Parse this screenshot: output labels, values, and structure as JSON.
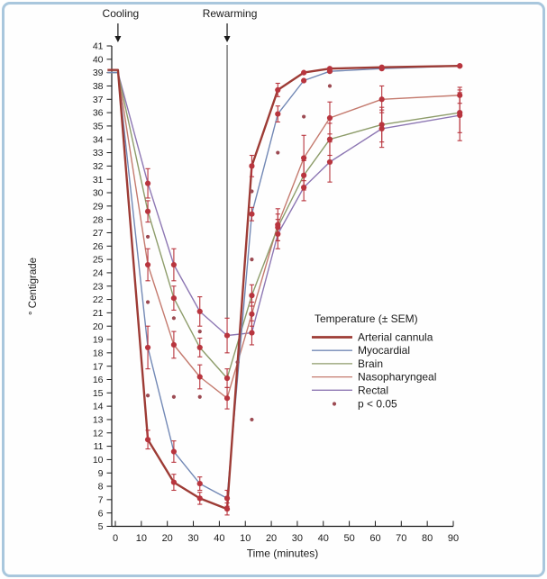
{
  "chart_data": {
    "type": "line",
    "title": "",
    "xlabel": "Time (minutes)",
    "ylabel": "° Centigrade",
    "y_axis": {
      "min": 5,
      "max": 41,
      "step": 1
    },
    "x_axis": {
      "note": "split axis: cooling 0-40 min, then rewarming 10-90 min",
      "ticks": [
        {
          "p": 0,
          "label": "0"
        },
        {
          "p": 10,
          "label": "10"
        },
        {
          "p": 20,
          "label": "20"
        },
        {
          "p": 30,
          "label": "30"
        },
        {
          "p": 40,
          "label": "40"
        },
        {
          "p": 50,
          "label": "10"
        },
        {
          "p": 60,
          "label": "20"
        },
        {
          "p": 70,
          "label": "30"
        },
        {
          "p": 80,
          "label": "40"
        },
        {
          "p": 90,
          "label": "50"
        },
        {
          "p": 100,
          "label": "60"
        },
        {
          "p": 110,
          "label": "70"
        },
        {
          "p": 120,
          "label": "80"
        },
        {
          "p": 130,
          "label": "90"
        }
      ]
    },
    "annotations": {
      "cooling": {
        "label": "Cooling",
        "p": 1,
        "has_guide_line": false
      },
      "rewarming": {
        "label": "Rewarming",
        "p": 43,
        "has_guide_line": true,
        "guide_line_bottom_temp": 20.5
      }
    },
    "legend": {
      "title": "Temperature (± SEM)",
      "sig_label": "p < 0.05"
    },
    "marker_color": "#b8353e",
    "sig_color": "#9c4a52",
    "series": [
      {
        "name": "Arterial cannula",
        "color": "#9d3b35",
        "width": 2.4,
        "points": [
          {
            "t": -3,
            "temp": 39.2,
            "sem": 0,
            "dot": false
          },
          {
            "t": 1,
            "temp": 39.2,
            "sem": 0,
            "dot": false
          },
          {
            "t": 12.5,
            "temp": 11.5,
            "sem": 0.7
          },
          {
            "t": 22.5,
            "temp": 8.3,
            "sem": 0.6
          },
          {
            "t": 32.5,
            "temp": 7.1,
            "sem": 0.45
          },
          {
            "t": 43,
            "temp": 6.3,
            "sem": 0.45
          },
          {
            "t": 52.5,
            "temp": 32.0,
            "sem": 0.8
          },
          {
            "t": 62.5,
            "temp": 37.7,
            "sem": 0.5
          },
          {
            "t": 72.5,
            "temp": 39.0,
            "sem": 0
          },
          {
            "t": 82.5,
            "temp": 39.3,
            "sem": 0
          },
          {
            "t": 102.5,
            "temp": 39.4,
            "sem": 0
          },
          {
            "t": 132.5,
            "temp": 39.5,
            "sem": 0
          }
        ]
      },
      {
        "name": "Myocardial",
        "color": "#7288b5",
        "width": 1.4,
        "points": [
          {
            "t": -3,
            "temp": 39.0,
            "sem": 0,
            "dot": false
          },
          {
            "t": 1,
            "temp": 39.0,
            "sem": 0,
            "dot": false
          },
          {
            "t": 12.5,
            "temp": 18.4,
            "sem": 1.6
          },
          {
            "t": 22.5,
            "temp": 10.6,
            "sem": 0.8
          },
          {
            "t": 32.5,
            "temp": 8.2,
            "sem": 0.5
          },
          {
            "t": 43,
            "temp": 7.1,
            "sem": 0.6
          },
          {
            "t": 52.5,
            "temp": 28.4,
            "sem": 0.5
          },
          {
            "t": 62.5,
            "temp": 35.9,
            "sem": 0.6
          },
          {
            "t": 72.5,
            "temp": 38.4,
            "sem": 0
          },
          {
            "t": 82.5,
            "temp": 39.1,
            "sem": 0
          },
          {
            "t": 102.5,
            "temp": 39.3,
            "sem": 0
          },
          {
            "t": 132.5,
            "temp": 39.5,
            "sem": 0
          }
        ]
      },
      {
        "name": "Brain",
        "color": "#8d9c6a",
        "width": 1.4,
        "points": [
          {
            "t": -3,
            "temp": 39.0,
            "sem": 0,
            "dot": false
          },
          {
            "t": 1,
            "temp": 39.0,
            "sem": 0,
            "dot": false
          },
          {
            "t": 12.5,
            "temp": 28.6,
            "sem": 0.8
          },
          {
            "t": 22.5,
            "temp": 22.1,
            "sem": 0.9
          },
          {
            "t": 32.5,
            "temp": 18.4,
            "sem": 0.7
          },
          {
            "t": 43,
            "temp": 16.1,
            "sem": 0.7
          },
          {
            "t": 52.5,
            "temp": 22.3,
            "sem": 0.8
          },
          {
            "t": 62.5,
            "temp": 27.4,
            "sem": 1.0
          },
          {
            "t": 72.5,
            "temp": 31.3,
            "sem": 1.1
          },
          {
            "t": 82.5,
            "temp": 34.0,
            "sem": 1.2
          },
          {
            "t": 102.5,
            "temp": 35.1,
            "sem": 1.3
          },
          {
            "t": 132.5,
            "temp": 36.0,
            "sem": 1.5
          }
        ]
      },
      {
        "name": "Nasopharyngeal",
        "color": "#c47a6e",
        "width": 1.4,
        "points": [
          {
            "t": -3,
            "temp": 39.0,
            "sem": 0,
            "dot": false
          },
          {
            "t": 1,
            "temp": 39.0,
            "sem": 0,
            "dot": false
          },
          {
            "t": 12.5,
            "temp": 24.6,
            "sem": 1.2
          },
          {
            "t": 22.5,
            "temp": 18.6,
            "sem": 1.0
          },
          {
            "t": 32.5,
            "temp": 16.2,
            "sem": 0.9
          },
          {
            "t": 43,
            "temp": 14.6,
            "sem": 0.8
          },
          {
            "t": 52.5,
            "temp": 20.9,
            "sem": 0.9
          },
          {
            "t": 62.5,
            "temp": 27.6,
            "sem": 1.2
          },
          {
            "t": 72.5,
            "temp": 32.6,
            "sem": 1.7
          },
          {
            "t": 82.5,
            "temp": 35.6,
            "sem": 1.2
          },
          {
            "t": 102.5,
            "temp": 37.0,
            "sem": 1.0
          },
          {
            "t": 132.5,
            "temp": 37.3,
            "sem": 0.6
          }
        ]
      },
      {
        "name": "Rectal",
        "color": "#8d77b3",
        "width": 1.4,
        "points": [
          {
            "t": -3,
            "temp": 39.0,
            "sem": 0,
            "dot": false
          },
          {
            "t": 1,
            "temp": 39.0,
            "sem": 0,
            "dot": false
          },
          {
            "t": 12.5,
            "temp": 30.7,
            "sem": 1.1
          },
          {
            "t": 22.5,
            "temp": 24.6,
            "sem": 1.2
          },
          {
            "t": 32.5,
            "temp": 21.1,
            "sem": 1.1
          },
          {
            "t": 43,
            "temp": 19.3,
            "sem": 1.3
          },
          {
            "t": 52.5,
            "temp": 19.5,
            "sem": 0.9
          },
          {
            "t": 62.5,
            "temp": 26.9,
            "sem": 1.1
          },
          {
            "t": 72.5,
            "temp": 30.4,
            "sem": 1.0
          },
          {
            "t": 82.5,
            "temp": 32.3,
            "sem": 1.5
          },
          {
            "t": 102.5,
            "temp": 34.8,
            "sem": 1.4
          },
          {
            "t": 132.5,
            "temp": 35.8,
            "sem": 1.9
          }
        ]
      }
    ],
    "significance_markers": {
      "label": "p < 0.05",
      "points": [
        {
          "t": 12.5,
          "temp": 26.7
        },
        {
          "t": 12.5,
          "temp": 21.8
        },
        {
          "t": 12.5,
          "temp": 14.8
        },
        {
          "t": 22.5,
          "temp": 20.6
        },
        {
          "t": 22.5,
          "temp": 14.7
        },
        {
          "t": 32.5,
          "temp": 19.6
        },
        {
          "t": 32.5,
          "temp": 14.7
        },
        {
          "t": 47,
          "temp": 17.3
        },
        {
          "t": 52.5,
          "temp": 30.1
        },
        {
          "t": 52.5,
          "temp": 25.0
        },
        {
          "t": 52.5,
          "temp": 13.0
        },
        {
          "t": 62.5,
          "temp": 33.0
        },
        {
          "t": 72.5,
          "temp": 35.7
        },
        {
          "t": 82.5,
          "temp": 38.0
        }
      ]
    }
  }
}
